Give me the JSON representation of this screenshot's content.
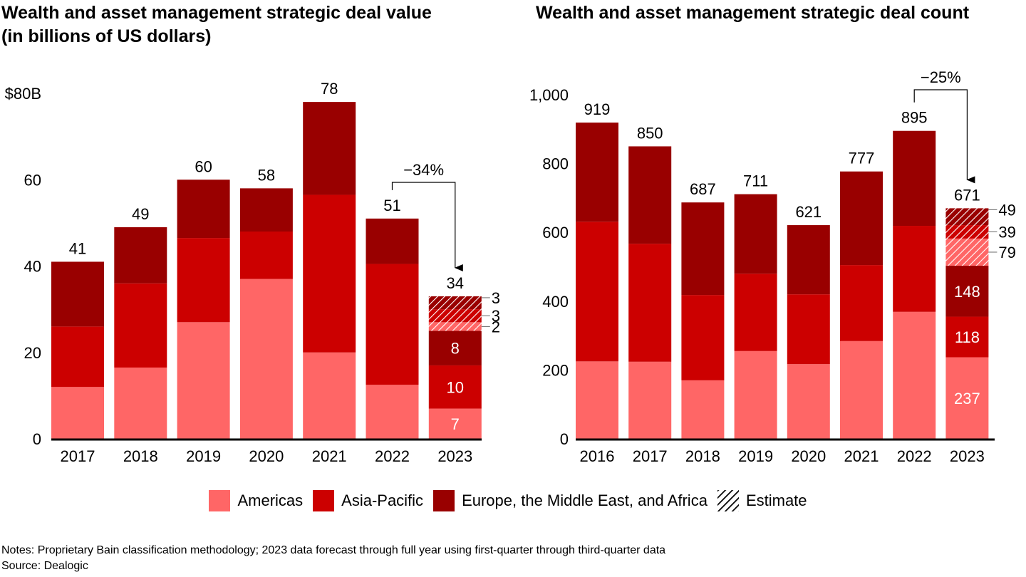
{
  "colors": {
    "americas": "#FF6666",
    "asia_pacific": "#CC0000",
    "emea": "#990000",
    "axis": "#000000"
  },
  "legend": [
    {
      "key": "americas",
      "label": "Americas"
    },
    {
      "key": "asia_pacific",
      "label": "Asia-Pacific"
    },
    {
      "key": "emea",
      "label": "Europe, the Middle East, and Africa"
    },
    {
      "key": "estimate",
      "label": "Estimate"
    }
  ],
  "notes": "Notes: Proprietary Bain classification methodology; 2023 data forecast through full year using first-quarter through third-quarter data",
  "source": "Source: Dealogic",
  "chart_data": [
    {
      "type": "bar",
      "stacked": true,
      "title": "Wealth and asset management strategic deal value (in billions of US dollars)",
      "title_lines": [
        "Wealth and asset management strategic deal value",
        "(in billions of US dollars)"
      ],
      "xlabel": "",
      "ylabel": "",
      "ylim": [
        0,
        80
      ],
      "yticks": [
        0,
        20,
        40,
        60,
        80
      ],
      "ytick_labels": [
        "0",
        "20",
        "40",
        "60",
        "$80B"
      ],
      "categories": [
        "2017",
        "2018",
        "2019",
        "2020",
        "2021",
        "2022",
        "2023"
      ],
      "totals": [
        41,
        49,
        60,
        58,
        78,
        51,
        34
      ],
      "series": [
        {
          "name": "Americas",
          "values": [
            12,
            16.5,
            27,
            37,
            20,
            12.5,
            7
          ]
        },
        {
          "name": "Asia-Pacific",
          "values": [
            14,
            19.5,
            19.5,
            11,
            36.5,
            28,
            10
          ]
        },
        {
          "name": "Europe, the Middle East, and Africa",
          "values": [
            15,
            13,
            13.5,
            10,
            21.5,
            10.5,
            8
          ]
        },
        {
          "name": "Americas (estimate)",
          "values": [
            0,
            0,
            0,
            0,
            0,
            0,
            2
          ]
        },
        {
          "name": "Asia-Pacific (estimate)",
          "values": [
            0,
            0,
            0,
            0,
            0,
            0,
            3
          ]
        },
        {
          "name": "EMEA (estimate)",
          "values": [
            0,
            0,
            0,
            0,
            0,
            0,
            3
          ]
        }
      ],
      "last_bar_labels": {
        "americas": "7",
        "asia_pacific": "10",
        "emea": "8",
        "est_americas": "2",
        "est_asia_pacific": "3",
        "est_emea": "3"
      },
      "annotation": {
        "text": "−34%",
        "from": "2022",
        "to": "2023"
      },
      "grid": false
    },
    {
      "type": "bar",
      "stacked": true,
      "title": "Wealth and asset management strategic deal count",
      "title_lines": [
        "Wealth and asset management strategic deal count"
      ],
      "xlabel": "",
      "ylabel": "",
      "ylim": [
        0,
        1000
      ],
      "yticks": [
        0,
        200,
        400,
        600,
        800,
        1000
      ],
      "ytick_labels": [
        "0",
        "200",
        "400",
        "600",
        "800",
        "1,000"
      ],
      "categories": [
        "2016",
        "2017",
        "2018",
        "2019",
        "2020",
        "2021",
        "2022",
        "2023"
      ],
      "totals": [
        919,
        850,
        687,
        711,
        621,
        777,
        895,
        671
      ],
      "series": [
        {
          "name": "Americas",
          "values": [
            225,
            224,
            170,
            255,
            217,
            284,
            369,
            237
          ]
        },
        {
          "name": "Asia-Pacific",
          "values": [
            406,
            343,
            248,
            225,
            203,
            221,
            250,
            118
          ]
        },
        {
          "name": "Europe, the Middle East, and Africa",
          "values": [
            288,
            283,
            269,
            231,
            201,
            272,
            276,
            148
          ]
        },
        {
          "name": "Americas (estimate)",
          "values": [
            0,
            0,
            0,
            0,
            0,
            0,
            0,
            79
          ]
        },
        {
          "name": "Asia-Pacific (estimate)",
          "values": [
            0,
            0,
            0,
            0,
            0,
            0,
            0,
            39
          ]
        },
        {
          "name": "EMEA (estimate)",
          "values": [
            0,
            0,
            0,
            0,
            0,
            0,
            0,
            49
          ]
        }
      ],
      "last_bar_labels": {
        "americas": "237",
        "asia_pacific": "118",
        "emea": "148",
        "est_americas": "79",
        "est_asia_pacific": "39",
        "est_emea": "49"
      },
      "annotation": {
        "text": "−25%",
        "from": "2022",
        "to": "2023"
      },
      "grid": false
    }
  ]
}
